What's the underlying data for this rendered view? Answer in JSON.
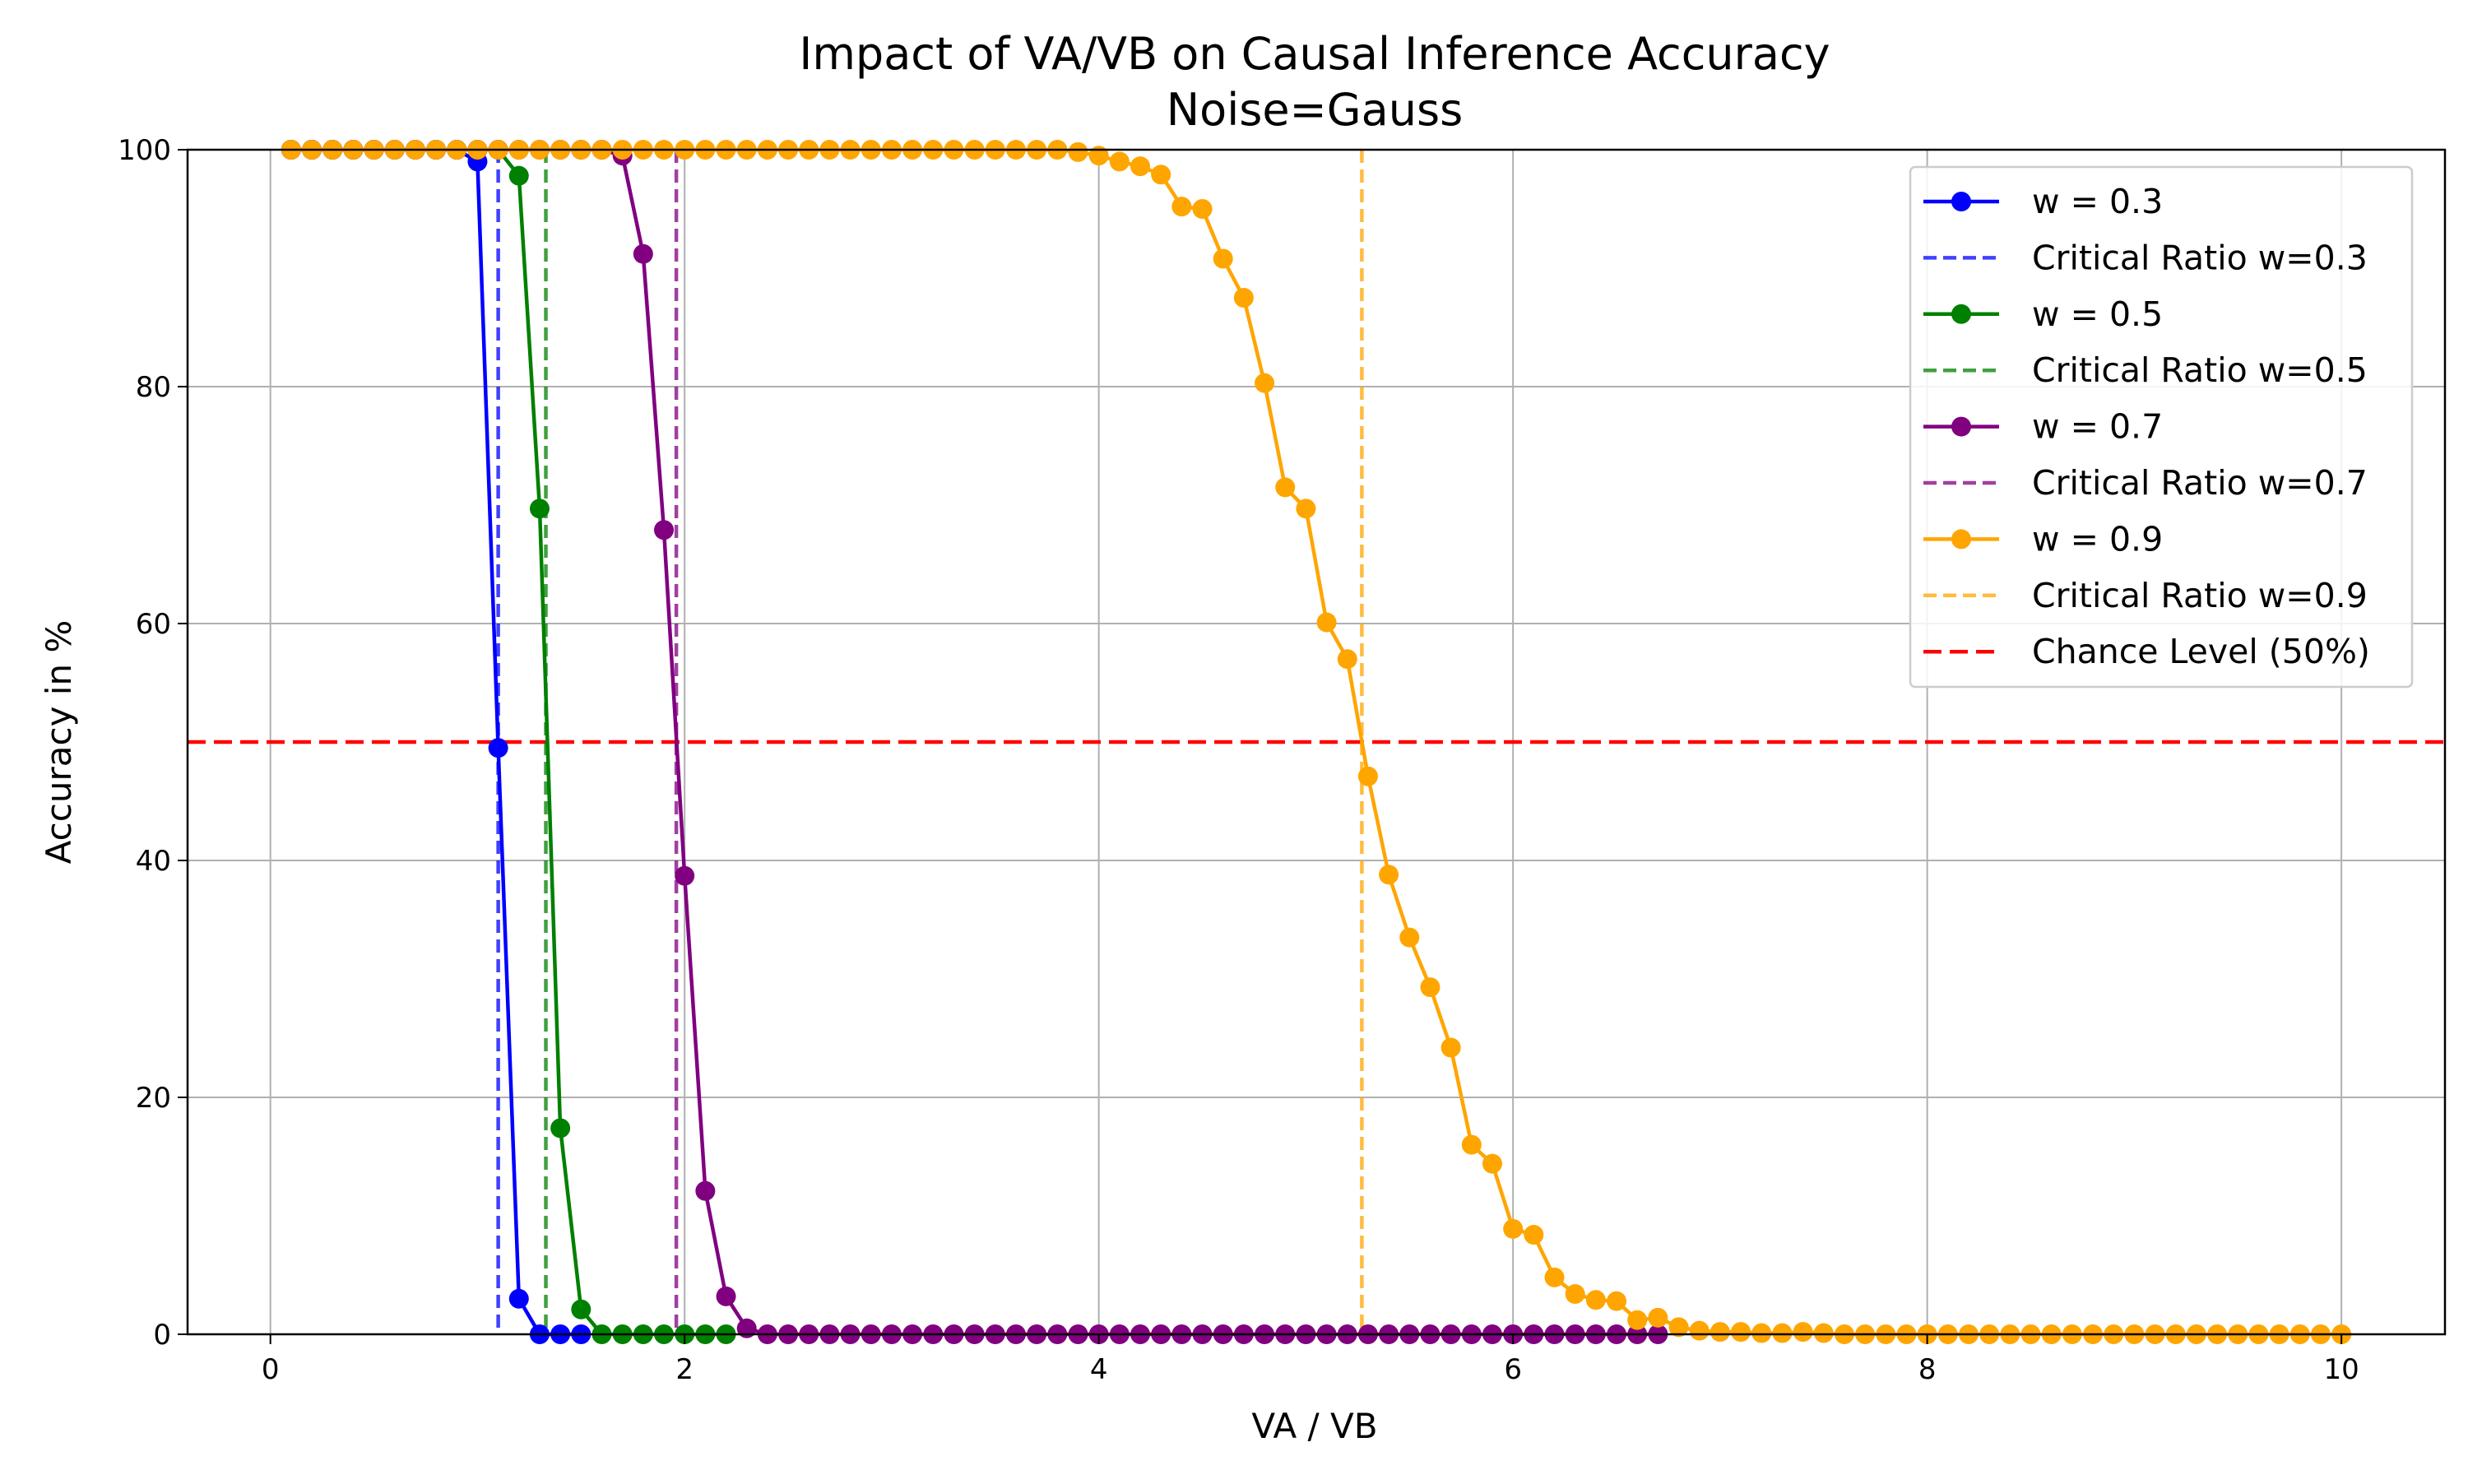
{
  "chart_data": {
    "type": "line",
    "title": "Impact of VA/VB on Causal Inference Accuracy",
    "subtitle": "Noise=Gauss",
    "xlabel": "VA / VB",
    "ylabel": "Accuracy in %",
    "xlim": [
      -0.4,
      10.5
    ],
    "ylim": [
      0,
      100
    ],
    "xticks": [
      "0",
      "2",
      "4",
      "6",
      "8",
      "10"
    ],
    "yticks": [
      "0",
      "20",
      "40",
      "60",
      "80",
      "100"
    ],
    "grid": true,
    "legend_position": "top-right",
    "chance_level": {
      "name": "Chance Level (50%)",
      "value": 50,
      "color": "#ff0000"
    },
    "series": [
      {
        "name": "w = 0.3",
        "color": "#0000ff",
        "critical_ratio": {
          "name": "Critical Ratio w=0.3",
          "value": 1.1
        },
        "x": [
          0.1,
          0.2,
          0.3,
          0.4,
          0.5,
          0.6,
          0.7,
          0.8,
          0.9,
          1.0,
          1.1,
          1.2,
          1.3,
          1.4,
          1.5
        ],
        "values": [
          100,
          100,
          100,
          100,
          100,
          100,
          100,
          100,
          100,
          99,
          49.5,
          3,
          0,
          0,
          0
        ]
      },
      {
        "name": "w = 0.5",
        "color": "#008000",
        "critical_ratio": {
          "name": "Critical Ratio w=0.5",
          "value": 1.33
        },
        "x": [
          0.1,
          0.2,
          0.3,
          0.4,
          0.5,
          0.6,
          0.7,
          0.8,
          0.9,
          1.0,
          1.1,
          1.2,
          1.3,
          1.4,
          1.5,
          1.6,
          1.7,
          1.8,
          1.9,
          2.0,
          2.1,
          2.2
        ],
        "values": [
          100,
          100,
          100,
          100,
          100,
          100,
          100,
          100,
          100,
          100,
          100,
          97.8,
          69.7,
          17.4,
          2.1,
          0,
          0,
          0,
          0,
          0,
          0,
          0
        ]
      },
      {
        "name": "w = 0.7",
        "color": "#800080",
        "critical_ratio": {
          "name": "Critical Ratio w=0.7",
          "value": 1.96
        },
        "x": [
          0.1,
          0.2,
          0.3,
          0.4,
          0.5,
          0.6,
          0.7,
          0.8,
          0.9,
          1.0,
          1.1,
          1.2,
          1.3,
          1.4,
          1.5,
          1.6,
          1.7,
          1.8,
          1.9,
          2.0,
          2.1,
          2.2,
          2.3,
          2.4,
          2.5,
          2.6,
          2.7,
          2.8,
          2.9,
          3.0,
          3.1,
          3.2,
          3.3,
          3.4,
          3.5,
          3.6,
          3.7,
          3.8,
          3.9,
          4.0,
          4.1,
          4.2,
          4.3,
          4.4,
          4.5,
          4.6,
          4.7,
          4.8,
          4.9,
          5.0,
          5.1,
          5.2,
          5.3,
          5.4,
          5.5,
          5.6,
          5.7,
          5.8,
          5.9,
          6.0,
          6.1,
          6.2,
          6.3,
          6.4,
          6.5,
          6.6,
          6.7
        ],
        "values": [
          100,
          100,
          100,
          100,
          100,
          100,
          100,
          100,
          100,
          100,
          100,
          100,
          100,
          100,
          100,
          100,
          99.5,
          91.2,
          67.9,
          38.7,
          12.1,
          3.2,
          0.5,
          0,
          0,
          0,
          0,
          0,
          0,
          0,
          0,
          0,
          0,
          0,
          0,
          0,
          0,
          0,
          0,
          0,
          0,
          0,
          0,
          0,
          0,
          0,
          0,
          0,
          0,
          0,
          0,
          0,
          0,
          0,
          0,
          0,
          0,
          0,
          0,
          0,
          0,
          0,
          0,
          0,
          0,
          0,
          0
        ]
      },
      {
        "name": "w = 0.9",
        "color": "#ffa500",
        "critical_ratio": {
          "name": "Critical Ratio w=0.9",
          "value": 5.27
        },
        "x": [
          0.1,
          0.2,
          0.3,
          0.4,
          0.5,
          0.6,
          0.7,
          0.8,
          0.9,
          1.0,
          1.1,
          1.2,
          1.3,
          1.4,
          1.5,
          1.6,
          1.7,
          1.8,
          1.9,
          2.0,
          2.1,
          2.2,
          2.3,
          2.4,
          2.5,
          2.6,
          2.7,
          2.8,
          2.9,
          3.0,
          3.1,
          3.2,
          3.3,
          3.4,
          3.5,
          3.6,
          3.7,
          3.8,
          3.9,
          4.0,
          4.1,
          4.2,
          4.3,
          4.4,
          4.5,
          4.6,
          4.7,
          4.8,
          4.9,
          5.0,
          5.1,
          5.2,
          5.3,
          5.4,
          5.5,
          5.6,
          5.7,
          5.8,
          5.9,
          6.0,
          6.1,
          6.2,
          6.3,
          6.4,
          6.5,
          6.6,
          6.7,
          6.8,
          6.9,
          7.0,
          7.1,
          7.2,
          7.3,
          7.4,
          7.5,
          7.6,
          7.7,
          7.8,
          7.9,
          8.0,
          8.1,
          8.2,
          8.3,
          8.4,
          8.5,
          8.6,
          8.7,
          8.8,
          8.9,
          9.0,
          9.1,
          9.2,
          9.3,
          9.4,
          9.5,
          9.6,
          9.7,
          9.8,
          9.9,
          10.0
        ],
        "values": [
          100,
          100,
          100,
          100,
          100,
          100,
          100,
          100,
          100,
          100,
          100,
          100,
          100,
          100,
          100,
          100,
          100,
          100,
          100,
          100,
          100,
          100,
          100,
          100,
          100,
          100,
          100,
          100,
          100,
          100,
          100,
          100,
          100,
          100,
          100,
          100,
          100,
          100,
          99.8,
          99.5,
          99,
          98.6,
          97.9,
          95.2,
          95,
          90.8,
          87.5,
          80.3,
          71.5,
          69.7,
          60.1,
          57,
          47.1,
          38.8,
          33.5,
          29.3,
          24.2,
          16,
          14.4,
          8.9,
          8.4,
          4.8,
          3.4,
          2.9,
          2.8,
          1.2,
          1.4,
          0.6,
          0.3,
          0.2,
          0.2,
          0.1,
          0.1,
          0.2,
          0.1,
          0,
          0,
          0,
          0,
          0,
          0,
          0,
          0,
          0,
          0,
          0,
          0,
          0,
          0,
          0,
          0,
          0,
          0,
          0,
          0,
          0,
          0,
          0,
          0,
          0
        ]
      }
    ]
  }
}
